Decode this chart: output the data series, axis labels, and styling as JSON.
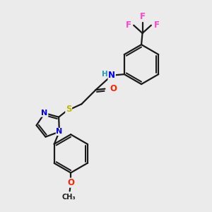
{
  "background_color": "#ebebeb",
  "bond_color": "#1a1a1a",
  "bond_width": 1.6,
  "atom_colors": {
    "N": "#0000ee",
    "O": "#ff2200",
    "S": "#bbbb00",
    "F": "#ff44cc",
    "H": "#2299bb",
    "C": "#1a1a1a"
  },
  "fs": 8.5,
  "fs_small": 7.5,
  "inner_ratio": 0.13
}
